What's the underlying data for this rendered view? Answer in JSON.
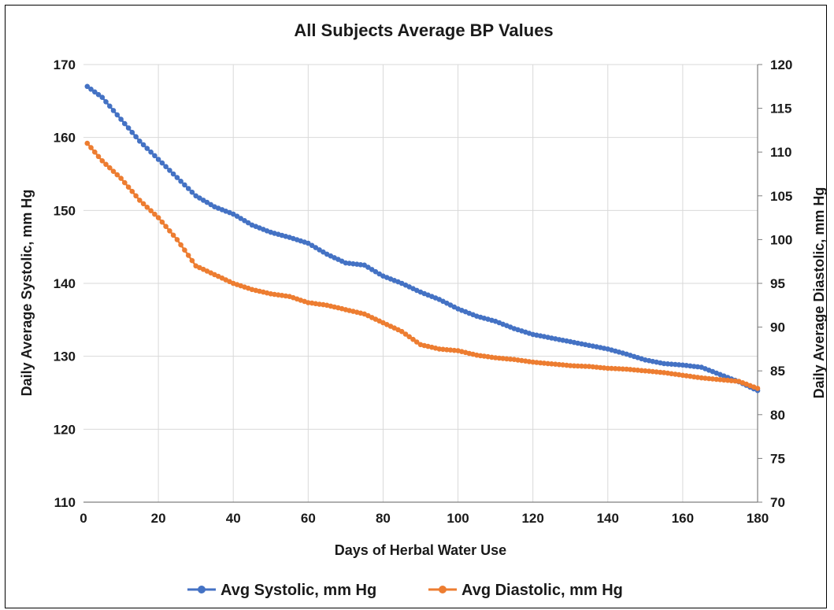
{
  "chart_data": {
    "type": "scatter",
    "title": "All Subjects Average BP Values",
    "xlabel": "Days of Herbal Water Use",
    "ylabel": "Daily Average Systolic, mm Hg",
    "y2label": "Daily Average Diastolic, mm Hg",
    "xlim": [
      0,
      180
    ],
    "ylim": [
      110,
      170
    ],
    "y2lim": [
      70,
      120
    ],
    "x_ticks": [
      0,
      20,
      40,
      60,
      80,
      100,
      120,
      140,
      160,
      180
    ],
    "y_ticks": [
      110,
      120,
      130,
      140,
      150,
      160,
      170
    ],
    "y2_ticks": [
      70,
      75,
      80,
      85,
      90,
      95,
      100,
      105,
      110,
      115,
      120
    ],
    "grid": true,
    "legend_position": "bottom",
    "series": [
      {
        "name": "Avg Systolic, mm Hg",
        "axis": "left",
        "color": "#4472C4",
        "points": [
          [
            1,
            167.0
          ],
          [
            5,
            165.5
          ],
          [
            10,
            162.5
          ],
          [
            15,
            159.5
          ],
          [
            20,
            157.0
          ],
          [
            25,
            154.5
          ],
          [
            30,
            152.0
          ],
          [
            35,
            150.5
          ],
          [
            40,
            149.5
          ],
          [
            45,
            148.0
          ],
          [
            50,
            147.0
          ],
          [
            55,
            146.3
          ],
          [
            60,
            145.5
          ],
          [
            65,
            144.0
          ],
          [
            70,
            142.8
          ],
          [
            75,
            142.5
          ],
          [
            80,
            141.0
          ],
          [
            85,
            140.0
          ],
          [
            90,
            138.8
          ],
          [
            95,
            137.8
          ],
          [
            100,
            136.5
          ],
          [
            105,
            135.5
          ],
          [
            110,
            134.8
          ],
          [
            115,
            133.8
          ],
          [
            120,
            133.0
          ],
          [
            125,
            132.5
          ],
          [
            130,
            132.0
          ],
          [
            135,
            131.5
          ],
          [
            140,
            131.0
          ],
          [
            145,
            130.3
          ],
          [
            150,
            129.5
          ],
          [
            155,
            129.0
          ],
          [
            160,
            128.8
          ],
          [
            165,
            128.5
          ],
          [
            170,
            127.5
          ],
          [
            175,
            126.5
          ],
          [
            180,
            125.3
          ]
        ]
      },
      {
        "name": "Avg Diastolic, mm Hg",
        "axis": "right",
        "color": "#ED7D31",
        "points": [
          [
            1,
            111.0
          ],
          [
            5,
            109.0
          ],
          [
            10,
            107.0
          ],
          [
            15,
            104.5
          ],
          [
            20,
            102.5
          ],
          [
            25,
            100.0
          ],
          [
            30,
            97.0
          ],
          [
            35,
            96.0
          ],
          [
            40,
            95.0
          ],
          [
            45,
            94.3
          ],
          [
            50,
            93.8
          ],
          [
            55,
            93.5
          ],
          [
            60,
            92.8
          ],
          [
            65,
            92.5
          ],
          [
            70,
            92.0
          ],
          [
            75,
            91.5
          ],
          [
            80,
            90.5
          ],
          [
            85,
            89.5
          ],
          [
            90,
            88.0
          ],
          [
            95,
            87.5
          ],
          [
            100,
            87.3
          ],
          [
            105,
            86.8
          ],
          [
            110,
            86.5
          ],
          [
            115,
            86.3
          ],
          [
            120,
            86.0
          ],
          [
            125,
            85.8
          ],
          [
            130,
            85.6
          ],
          [
            135,
            85.5
          ],
          [
            140,
            85.3
          ],
          [
            145,
            85.2
          ],
          [
            150,
            85.0
          ],
          [
            155,
            84.8
          ],
          [
            160,
            84.5
          ],
          [
            165,
            84.2
          ],
          [
            170,
            84.0
          ],
          [
            175,
            83.8
          ],
          [
            180,
            83.0
          ]
        ]
      }
    ]
  }
}
